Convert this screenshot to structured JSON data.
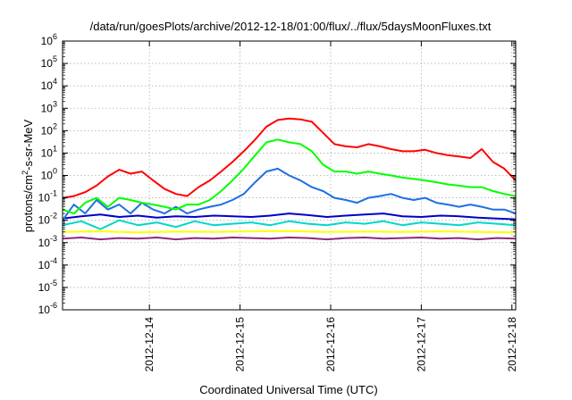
{
  "chart_data": {
    "type": "line",
    "title": "/data/run/goesPlots/archive/2012-12-18/01:00/flux/../flux/5daysMoonFluxes.txt",
    "xlabel": "Coordinated Universal Time (UTC)",
    "ylabel": {
      "prefix": "protons/cm",
      "sup": "2",
      "suffix": "-s-sr-MeV"
    },
    "y_scale": "log",
    "ylim": [
      1e-06,
      1000000.0
    ],
    "y_ticks": [
      {
        "value": 1e-06,
        "base": "10",
        "exp": "-6"
      },
      {
        "value": 1e-05,
        "base": "10",
        "exp": "-5"
      },
      {
        "value": 0.0001,
        "base": "10",
        "exp": "-4"
      },
      {
        "value": 0.001,
        "base": "10",
        "exp": "-3"
      },
      {
        "value": 0.01,
        "base": "10",
        "exp": "-2"
      },
      {
        "value": 0.1,
        "base": "10",
        "exp": "-1"
      },
      {
        "value": 1,
        "base": "10",
        "exp": "0"
      },
      {
        "value": 10,
        "base": "10",
        "exp": "1"
      },
      {
        "value": 100,
        "base": "10",
        "exp": "2"
      },
      {
        "value": 1000,
        "base": "10",
        "exp": "3"
      },
      {
        "value": 10000,
        "base": "10",
        "exp": "4"
      },
      {
        "value": 100000,
        "base": "10",
        "exp": "5"
      },
      {
        "value": 1000000,
        "base": "10",
        "exp": "6"
      }
    ],
    "xlim": [
      "2012-12-13T01:00",
      "2012-12-18T01:00"
    ],
    "x_ticks": [
      "2012-12-14",
      "2012-12-15",
      "2012-12-16",
      "2012-12-17",
      "2012-12-18"
    ],
    "grid": true,
    "legend": "none",
    "series": [
      {
        "color": "#ff0000",
        "x": [
          "2012-12-13T01:00",
          "2012-12-13T04:00",
          "2012-12-13T07:00",
          "2012-12-13T10:00",
          "2012-12-13T13:00",
          "2012-12-13T16:00",
          "2012-12-13T19:00",
          "2012-12-13T22:00",
          "2012-12-14T01:00",
          "2012-12-14T04:00",
          "2012-12-14T07:00",
          "2012-12-14T10:00",
          "2012-12-14T13:00",
          "2012-12-14T16:00",
          "2012-12-14T19:00",
          "2012-12-14T22:00",
          "2012-12-15T01:00",
          "2012-12-15T04:00",
          "2012-12-15T07:00",
          "2012-12-15T10:00",
          "2012-12-15T13:00",
          "2012-12-15T16:00",
          "2012-12-15T19:00",
          "2012-12-15T22:00",
          "2012-12-16T01:00",
          "2012-12-16T04:00",
          "2012-12-16T07:00",
          "2012-12-16T10:00",
          "2012-12-16T13:00",
          "2012-12-16T16:00",
          "2012-12-16T19:00",
          "2012-12-16T22:00",
          "2012-12-17T01:00",
          "2012-12-17T04:00",
          "2012-12-17T07:00",
          "2012-12-17T10:00",
          "2012-12-17T13:00",
          "2012-12-17T16:00",
          "2012-12-17T19:00",
          "2012-12-17T22:00",
          "2012-12-18T01:00"
        ],
        "y": [
          0.1,
          0.12,
          0.18,
          0.35,
          0.9,
          1.8,
          1.2,
          1.5,
          0.6,
          0.25,
          0.15,
          0.12,
          0.3,
          0.6,
          1.5,
          4,
          12,
          40,
          150,
          300,
          350,
          320,
          250,
          80,
          25,
          20,
          18,
          25,
          20,
          15,
          12,
          12,
          14,
          10,
          8,
          7,
          6,
          15,
          4,
          2,
          0.6
        ]
      },
      {
        "color": "#00ff00",
        "x": [
          "2012-12-13T01:00",
          "2012-12-13T04:00",
          "2012-12-13T07:00",
          "2012-12-13T10:00",
          "2012-12-13T13:00",
          "2012-12-13T16:00",
          "2012-12-13T19:00",
          "2012-12-13T22:00",
          "2012-12-14T01:00",
          "2012-12-14T04:00",
          "2012-12-14T07:00",
          "2012-12-14T10:00",
          "2012-12-14T13:00",
          "2012-12-14T16:00",
          "2012-12-14T19:00",
          "2012-12-14T22:00",
          "2012-12-15T01:00",
          "2012-12-15T04:00",
          "2012-12-15T07:00",
          "2012-12-15T10:00",
          "2012-12-15T13:00",
          "2012-12-15T16:00",
          "2012-12-15T19:00",
          "2012-12-15T22:00",
          "2012-12-16T01:00",
          "2012-12-16T04:00",
          "2012-12-16T07:00",
          "2012-12-16T10:00",
          "2012-12-16T13:00",
          "2012-12-16T16:00",
          "2012-12-16T19:00",
          "2012-12-16T22:00",
          "2012-12-17T01:00",
          "2012-12-17T04:00",
          "2012-12-17T07:00",
          "2012-12-17T10:00",
          "2012-12-17T13:00",
          "2012-12-17T16:00",
          "2012-12-17T19:00",
          "2012-12-17T22:00",
          "2012-12-18T01:00"
        ],
        "y": [
          0.03,
          0.02,
          0.06,
          0.1,
          0.04,
          0.1,
          0.08,
          0.06,
          0.05,
          0.04,
          0.03,
          0.05,
          0.05,
          0.08,
          0.2,
          0.6,
          2,
          8,
          30,
          40,
          30,
          25,
          12,
          3,
          1.5,
          1.5,
          1.2,
          1.5,
          1.2,
          1,
          0.8,
          0.7,
          0.6,
          0.5,
          0.4,
          0.35,
          0.3,
          0.3,
          0.2,
          0.15,
          0.12
        ]
      },
      {
        "color": "#1e6fe6",
        "x": [
          "2012-12-13T01:00",
          "2012-12-13T04:00",
          "2012-12-13T07:00",
          "2012-12-13T10:00",
          "2012-12-13T13:00",
          "2012-12-13T16:00",
          "2012-12-13T19:00",
          "2012-12-13T22:00",
          "2012-12-14T01:00",
          "2012-12-14T04:00",
          "2012-12-14T07:00",
          "2012-12-14T10:00",
          "2012-12-14T13:00",
          "2012-12-14T16:00",
          "2012-12-14T19:00",
          "2012-12-14T22:00",
          "2012-12-15T01:00",
          "2012-12-15T04:00",
          "2012-12-15T07:00",
          "2012-12-15T10:00",
          "2012-12-15T13:00",
          "2012-12-15T16:00",
          "2012-12-15T19:00",
          "2012-12-15T22:00",
          "2012-12-16T01:00",
          "2012-12-16T04:00",
          "2012-12-16T07:00",
          "2012-12-16T10:00",
          "2012-12-16T13:00",
          "2012-12-16T16:00",
          "2012-12-16T19:00",
          "2012-12-16T22:00",
          "2012-12-17T01:00",
          "2012-12-17T04:00",
          "2012-12-17T07:00",
          "2012-12-17T10:00",
          "2012-12-17T13:00",
          "2012-12-17T16:00",
          "2012-12-17T19:00",
          "2012-12-17T22:00",
          "2012-12-18T01:00"
        ],
        "y": [
          0.01,
          0.05,
          0.02,
          0.08,
          0.03,
          0.05,
          0.02,
          0.06,
          0.03,
          0.02,
          0.04,
          0.02,
          0.03,
          0.04,
          0.05,
          0.08,
          0.15,
          0.5,
          1.5,
          2,
          1,
          0.6,
          0.3,
          0.2,
          0.1,
          0.08,
          0.06,
          0.1,
          0.12,
          0.15,
          0.1,
          0.08,
          0.1,
          0.06,
          0.05,
          0.04,
          0.05,
          0.04,
          0.03,
          0.03,
          0.02
        ]
      },
      {
        "color": "#0000c8",
        "x": [
          "2012-12-13T01:00",
          "2012-12-13T06:00",
          "2012-12-13T11:00",
          "2012-12-13T16:00",
          "2012-12-13T21:00",
          "2012-12-14T02:00",
          "2012-12-14T07:00",
          "2012-12-14T12:00",
          "2012-12-14T17:00",
          "2012-12-14T22:00",
          "2012-12-15T03:00",
          "2012-12-15T08:00",
          "2012-12-15T13:00",
          "2012-12-15T18:00",
          "2012-12-15T23:00",
          "2012-12-16T04:00",
          "2012-12-16T09:00",
          "2012-12-16T14:00",
          "2012-12-16T19:00",
          "2012-12-17T00:00",
          "2012-12-17T05:00",
          "2012-12-17T10:00",
          "2012-12-17T15:00",
          "2012-12-17T20:00",
          "2012-12-18T01:00"
        ],
        "y": [
          0.012,
          0.015,
          0.018,
          0.014,
          0.016,
          0.013,
          0.015,
          0.014,
          0.016,
          0.015,
          0.014,
          0.016,
          0.02,
          0.017,
          0.014,
          0.016,
          0.018,
          0.02,
          0.015,
          0.014,
          0.016,
          0.015,
          0.013,
          0.012,
          0.011
        ]
      },
      {
        "color": "#00d8c8",
        "x": [
          "2012-12-13T01:00",
          "2012-12-13T06:00",
          "2012-12-13T11:00",
          "2012-12-13T16:00",
          "2012-12-13T21:00",
          "2012-12-14T02:00",
          "2012-12-14T07:00",
          "2012-12-14T12:00",
          "2012-12-14T17:00",
          "2012-12-14T22:00",
          "2012-12-15T03:00",
          "2012-12-15T08:00",
          "2012-12-15T13:00",
          "2012-12-15T18:00",
          "2012-12-15T23:00",
          "2012-12-16T04:00",
          "2012-12-16T09:00",
          "2012-12-16T14:00",
          "2012-12-16T19:00",
          "2012-12-17T00:00",
          "2012-12-17T05:00",
          "2012-12-17T10:00",
          "2012-12-17T15:00",
          "2012-12-17T20:00",
          "2012-12-18T01:00"
        ],
        "y": [
          0.006,
          0.009,
          0.004,
          0.01,
          0.006,
          0.008,
          0.005,
          0.009,
          0.006,
          0.007,
          0.008,
          0.006,
          0.009,
          0.007,
          0.006,
          0.008,
          0.007,
          0.009,
          0.006,
          0.008,
          0.007,
          0.006,
          0.008,
          0.007,
          0.006
        ]
      },
      {
        "color": "#ffff00",
        "x": [
          "2012-12-13T01:00",
          "2012-12-13T11:00",
          "2012-12-13T21:00",
          "2012-12-14T07:00",
          "2012-12-14T17:00",
          "2012-12-15T03:00",
          "2012-12-15T13:00",
          "2012-12-15T23:00",
          "2012-12-16T09:00",
          "2012-12-16T19:00",
          "2012-12-17T05:00",
          "2012-12-17T15:00",
          "2012-12-18T01:00"
        ],
        "y": [
          0.003,
          0.0032,
          0.0029,
          0.0031,
          0.003,
          0.0032,
          0.0033,
          0.003,
          0.0031,
          0.003,
          0.0032,
          0.003,
          0.0029
        ]
      },
      {
        "color": "#8b2a7a",
        "x": [
          "2012-12-13T01:00",
          "2012-12-13T06:00",
          "2012-12-13T11:00",
          "2012-12-13T16:00",
          "2012-12-13T21:00",
          "2012-12-14T02:00",
          "2012-12-14T07:00",
          "2012-12-14T12:00",
          "2012-12-14T17:00",
          "2012-12-14T22:00",
          "2012-12-15T03:00",
          "2012-12-15T08:00",
          "2012-12-15T13:00",
          "2012-12-15T18:00",
          "2012-12-15T23:00",
          "2012-12-16T04:00",
          "2012-12-16T09:00",
          "2012-12-16T14:00",
          "2012-12-16T19:00",
          "2012-12-17T00:00",
          "2012-12-17T05:00",
          "2012-12-17T10:00",
          "2012-12-17T15:00",
          "2012-12-17T20:00",
          "2012-12-18T01:00"
        ],
        "y": [
          0.0015,
          0.0017,
          0.0014,
          0.0016,
          0.0015,
          0.0017,
          0.0014,
          0.0016,
          0.0015,
          0.0017,
          0.0016,
          0.0015,
          0.0017,
          0.0016,
          0.0014,
          0.0016,
          0.0017,
          0.0015,
          0.0016,
          0.0017,
          0.0015,
          0.0016,
          0.0014,
          0.0016,
          0.0015
        ]
      }
    ]
  }
}
